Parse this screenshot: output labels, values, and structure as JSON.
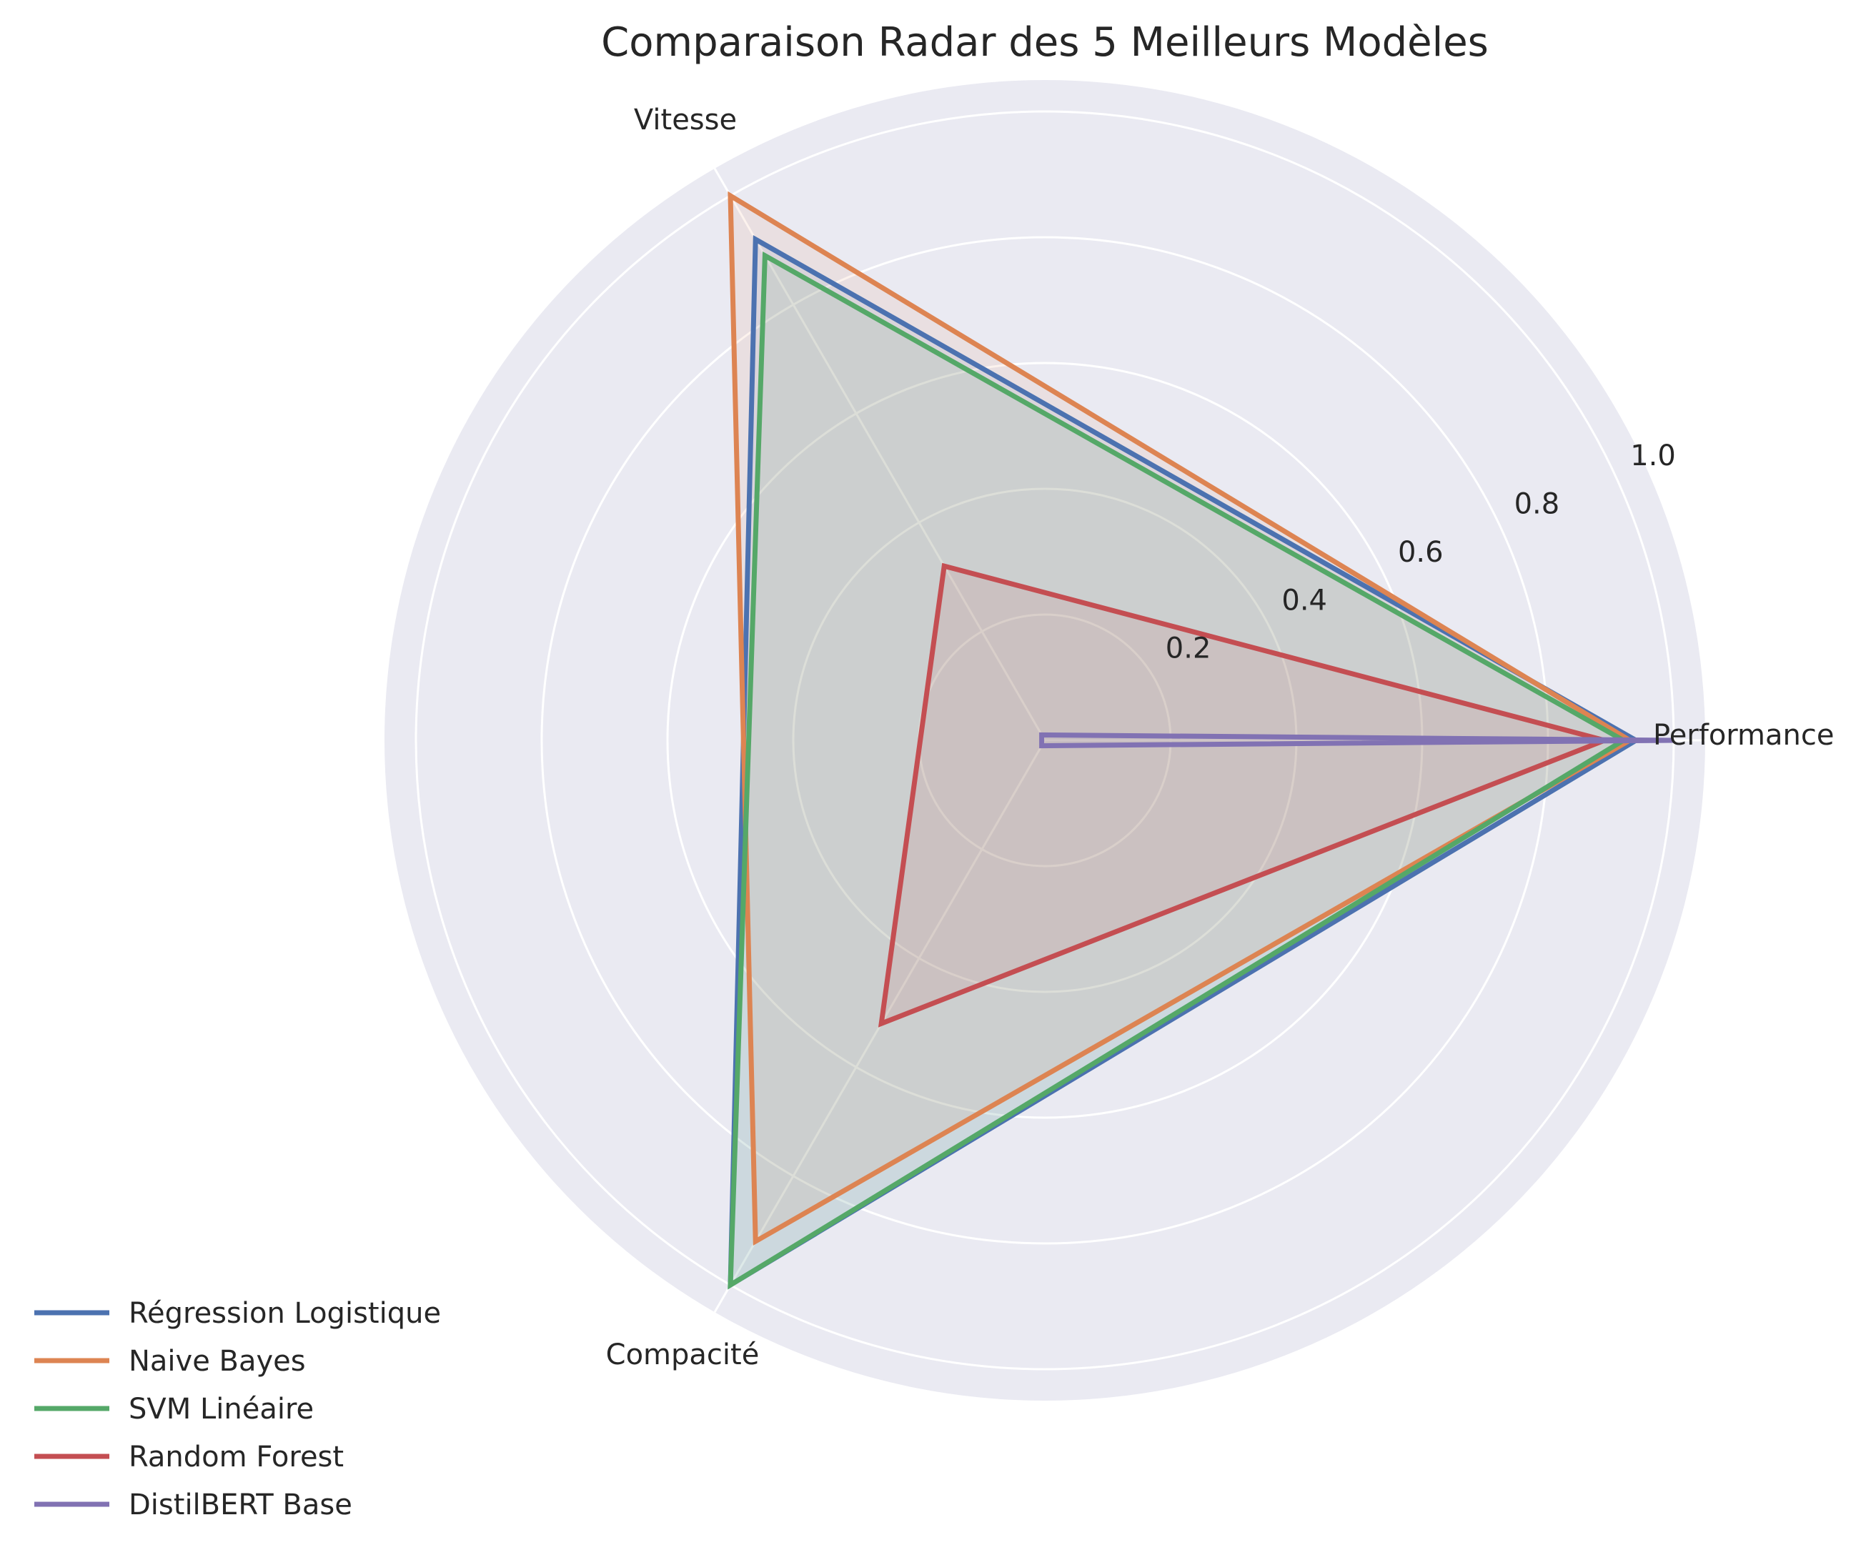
{
  "chart_data": {
    "type": "radar",
    "title": "Comparaison Radar des 5 Meilleurs Modèles",
    "axes": [
      "Performance",
      "Vitesse",
      "Compacité"
    ],
    "rlim": [
      0,
      1.05
    ],
    "rticks": [
      0.2,
      0.4,
      0.6,
      0.8,
      1.0
    ],
    "rtick_labels": [
      "0.2",
      "0.4",
      "0.6",
      "0.8",
      "1.0"
    ],
    "grid": true,
    "legend_position": "lower-left",
    "series": [
      {
        "name": "Régression Logistique",
        "color": "#4c72b0",
        "values": [
          0.94,
          0.92,
          1.0
        ]
      },
      {
        "name": "Naive Bayes",
        "color": "#dd8452",
        "values": [
          0.93,
          1.0,
          0.92
        ]
      },
      {
        "name": "SVM Linéaire",
        "color": "#55a868",
        "values": [
          0.92,
          0.89,
          1.0
        ]
      },
      {
        "name": "Random Forest",
        "color": "#c44e52",
        "values": [
          0.89,
          0.32,
          0.52
        ]
      },
      {
        "name": "DistilBERT Base",
        "color": "#8172b3",
        "values": [
          1.0,
          0.01,
          0.01
        ]
      }
    ]
  }
}
